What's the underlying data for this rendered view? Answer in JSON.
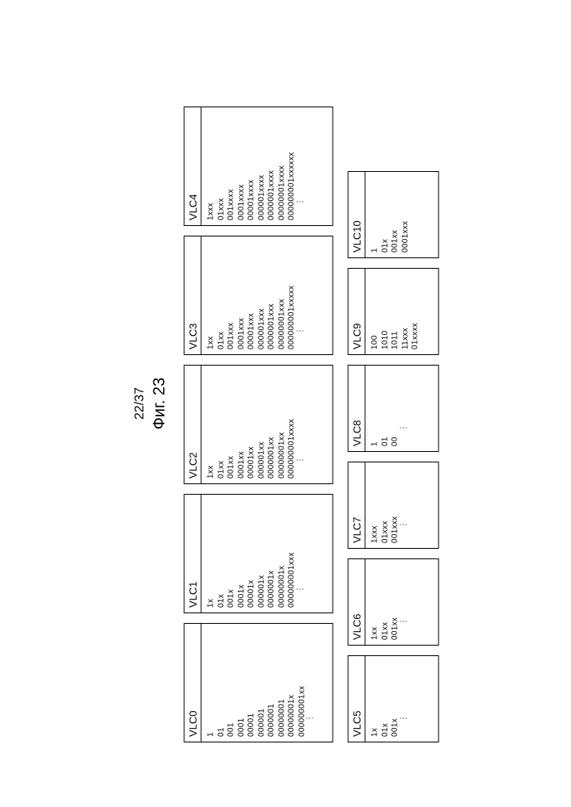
{
  "page_label": "22/37",
  "figure_label": "Фиг. 23",
  "row1": [
    {
      "title": "VLC0",
      "codes": [
        "1",
        "01",
        "001",
        "0001",
        "00001",
        "000001",
        "0000001",
        "00000001",
        "00000001x",
        "000000001xx"
      ],
      "has_dots": true
    },
    {
      "title": "VLC1",
      "codes": [
        "1x",
        "01x",
        "001x",
        "0001x",
        "00001x",
        "000001x",
        "0000001x",
        "00000001x",
        "000000001xxx"
      ],
      "has_dots": true
    },
    {
      "title": "VLC2",
      "codes": [
        "1xx",
        "01xx",
        "001xx",
        "0001xx",
        "00001xx",
        "000001xx",
        "0000001xx",
        "00000001xx",
        "000000001xxxx"
      ],
      "has_dots": true
    },
    {
      "title": "VLC3",
      "codes": [
        "1xx",
        "01xx",
        "001xxx",
        "0001xxx",
        "00001xxx",
        "000001xxx",
        "0000001xxx",
        "00000001xxx",
        "000000001xxxxx"
      ],
      "has_dots": true
    },
    {
      "title": "VLC4",
      "codes": [
        "1xxx",
        "01xxx",
        "001xxxx",
        "0001xxxx",
        "00001xxxx",
        "000001xxxx",
        "0000001xxxx",
        "00000001xxxx",
        "000000001xxxxxx"
      ],
      "has_dots": true
    }
  ],
  "row2": [
    {
      "title": "VLC5",
      "codes": [
        "1x",
        "01x",
        "001x"
      ],
      "has_dots": true
    },
    {
      "title": "VLC6",
      "codes": [
        "1xx",
        "01xx",
        "001xx"
      ],
      "has_dots": true
    },
    {
      "title": "VLC7",
      "codes": [
        "1xxx",
        "01xxx",
        "001xxx"
      ],
      "has_dots": true
    },
    {
      "title": "VLC8",
      "codes": [
        "1",
        "01",
        "00"
      ],
      "has_dots": true
    },
    {
      "title": "VLC9",
      "codes": [
        "100",
        "1010",
        "1011",
        "11xxx",
        "01xxxx"
      ],
      "has_dots": false
    },
    {
      "title": "VLC10",
      "codes": [
        "1",
        "01x",
        "001xx",
        "0001xxx"
      ],
      "has_dots": false
    }
  ],
  "style": {
    "border_color": "#000000",
    "background": "#ffffff",
    "title_fontsize": 13,
    "code_fontsize": 10,
    "row1_box_width": 148,
    "row2_box_width": 108
  }
}
